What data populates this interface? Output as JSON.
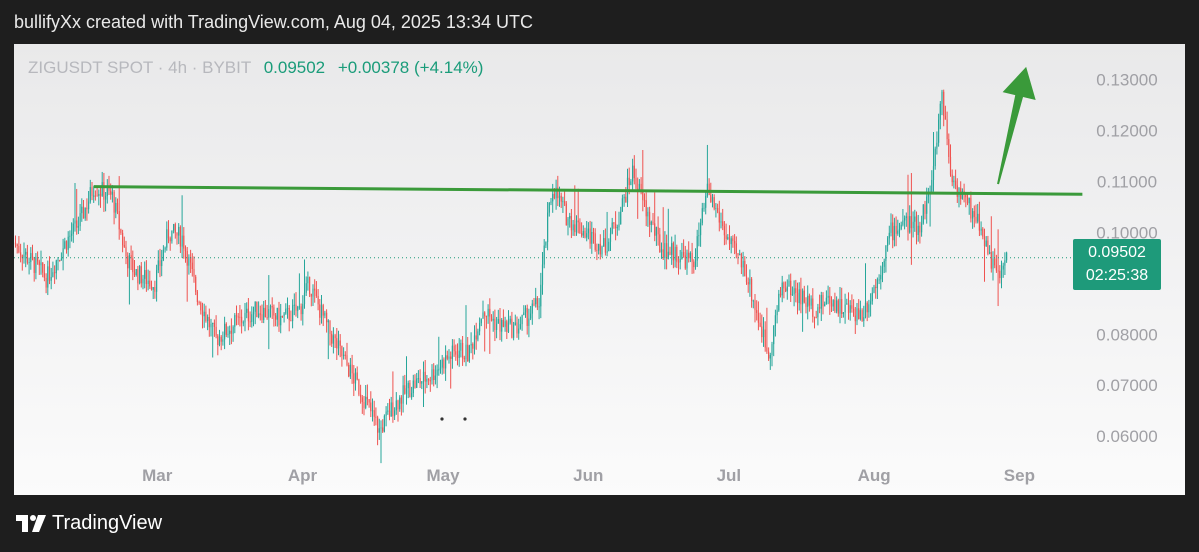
{
  "header": {
    "caption": "bullifyXx created with TradingView.com, Aug 04, 2025 13:34 UTC"
  },
  "legend": {
    "symbol": "ZIGUSDT SPOT · 4h · BYBIT",
    "last": "0.09502",
    "change": "+0.00378 (+4.14%)"
  },
  "price_tag": {
    "price": "0.09502",
    "countdown": "02:25:38"
  },
  "footer": {
    "brand": "TradingView"
  },
  "colors": {
    "up": "#26a69a",
    "down": "#ef5350",
    "trendline": "#3a9a3a",
    "arrow": "#3a9a3a",
    "axis_text": "#a0a0a5",
    "tag": "#1e9a7a"
  },
  "chart_data": {
    "type": "candlestick",
    "symbol": "ZIGUSDT",
    "timeframe": "4h",
    "x_labels": [
      "Mar",
      "Apr",
      "May",
      "Jun",
      "Jul",
      "Aug",
      "Sep"
    ],
    "y_ticks": [
      0.06,
      0.07,
      0.08,
      0.09,
      0.1,
      0.11,
      0.12,
      0.13
    ],
    "y_tick_labels": [
      "0.06000",
      "0.07000",
      "0.08000",
      "0.09000",
      "0.10000",
      "0.11000",
      "0.12000",
      "0.13000"
    ],
    "ylim": [
      0.0565,
      0.137
    ],
    "x_dates": [
      "2025-02-01",
      "2025-09-15"
    ],
    "last_price": 0.09502,
    "approx_close_path": [
      [
        "2025-02-01",
        0.098
      ],
      [
        "2025-02-05",
        0.094
      ],
      [
        "2025-02-08",
        0.091
      ],
      [
        "2025-02-12",
        0.098
      ],
      [
        "2025-02-15",
        0.102
      ],
      [
        "2025-02-18",
        0.109
      ],
      [
        "2025-02-20",
        0.108
      ],
      [
        "2025-02-22",
        0.107
      ],
      [
        "2025-02-25",
        0.095
      ],
      [
        "2025-02-27",
        0.092
      ],
      [
        "2025-03-03",
        0.09
      ],
      [
        "2025-03-06",
        0.1
      ],
      [
        "2025-03-09",
        0.099
      ],
      [
        "2025-03-12",
        0.088
      ],
      [
        "2025-03-16",
        0.079
      ],
      [
        "2025-03-20",
        0.082
      ],
      [
        "2025-03-25",
        0.085
      ],
      [
        "2025-03-30",
        0.083
      ],
      [
        "2025-04-03",
        0.085
      ],
      [
        "2025-04-05",
        0.09
      ],
      [
        "2025-04-09",
        0.081
      ],
      [
        "2025-04-13",
        0.074
      ],
      [
        "2025-04-17",
        0.067
      ],
      [
        "2025-04-20",
        0.061
      ],
      [
        "2025-04-23",
        0.066
      ],
      [
        "2025-04-27",
        0.07
      ],
      [
        "2025-05-01",
        0.072
      ],
      [
        "2025-05-04",
        0.075
      ],
      [
        "2025-05-07",
        0.077
      ],
      [
        "2025-05-09",
        0.076
      ],
      [
        "2025-05-12",
        0.085
      ],
      [
        "2025-05-15",
        0.082
      ],
      [
        "2025-05-19",
        0.081
      ],
      [
        "2025-05-21",
        0.083
      ],
      [
        "2025-05-24",
        0.086
      ],
      [
        "2025-05-26",
        0.103
      ],
      [
        "2025-05-27",
        0.109
      ],
      [
        "2025-05-30",
        0.103
      ],
      [
        "2025-06-03",
        0.1
      ],
      [
        "2025-06-07",
        0.097
      ],
      [
        "2025-06-10",
        0.103
      ],
      [
        "2025-06-13",
        0.112
      ],
      [
        "2025-06-16",
        0.104
      ],
      [
        "2025-06-19",
        0.097
      ],
      [
        "2025-06-22",
        0.096
      ],
      [
        "2025-06-26",
        0.094
      ],
      [
        "2025-06-29",
        0.108
      ],
      [
        "2025-07-01",
        0.104
      ],
      [
        "2025-07-04",
        0.097
      ],
      [
        "2025-07-07",
        0.093
      ],
      [
        "2025-07-09",
        0.086
      ],
      [
        "2025-07-12",
        0.076
      ],
      [
        "2025-07-15",
        0.09
      ],
      [
        "2025-07-18",
        0.088
      ],
      [
        "2025-07-22",
        0.085
      ],
      [
        "2025-07-25",
        0.087
      ],
      [
        "2025-07-28",
        0.085
      ],
      [
        "2025-08-01",
        0.084
      ],
      [
        "2025-08-04",
        0.09
      ],
      [
        "2025-08-07",
        0.1
      ],
      [
        "2025-08-10",
        0.102
      ],
      [
        "2025-08-13",
        0.101
      ],
      [
        "2025-08-16",
        0.11
      ],
      [
        "2025-08-18",
        0.128
      ],
      [
        "2025-08-20",
        0.111
      ],
      [
        "2025-08-23",
        0.106
      ],
      [
        "2025-08-26",
        0.102
      ],
      [
        "2025-08-28",
        0.096
      ],
      [
        "2025-08-30",
        0.091
      ],
      [
        "2025-09-01",
        0.09502
      ]
    ],
    "horizontal_lines": [
      {
        "type": "trendline",
        "from": [
          "2025-02-18",
          0.109
        ],
        "to": [
          "2025-09-17",
          0.1075
        ]
      },
      {
        "type": "price_line",
        "value": 0.09502,
        "style": "dotted"
      }
    ],
    "annotation": {
      "type": "arrow",
      "direction": "up",
      "from": [
        "2025-08-30",
        0.1095
      ],
      "to": [
        "2025-09-05",
        0.1325
      ]
    },
    "grid": false
  }
}
